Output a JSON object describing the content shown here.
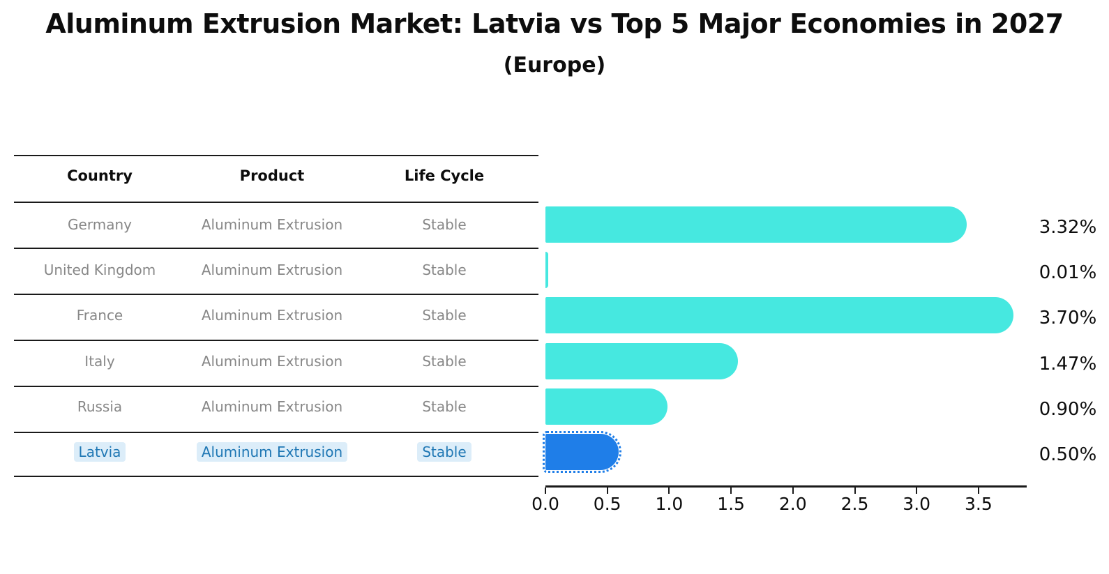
{
  "title": "Aluminum Extrusion Market: Latvia vs Top 5 Major Economies in 2027",
  "subtitle": "(Europe)",
  "table": {
    "headers": [
      "Country",
      "Product",
      "Life Cycle"
    ],
    "rows": [
      {
        "country": "Germany",
        "product": "Aluminum Extrusion",
        "life_cycle": "Stable"
      },
      {
        "country": "United Kingdom",
        "product": "Aluminum Extrusion",
        "life_cycle": "Stable"
      },
      {
        "country": "France",
        "product": "Aluminum Extrusion",
        "life_cycle": "Stable"
      },
      {
        "country": "Italy",
        "product": "Aluminum Extrusion",
        "life_cycle": "Stable"
      },
      {
        "country": "Russia",
        "product": "Aluminum Extrusion",
        "life_cycle": "Stable"
      },
      {
        "country": "Latvia",
        "product": "Aluminum Extrusion",
        "life_cycle": "Stable"
      }
    ],
    "highlighted_row": "Latvia"
  },
  "chart_data": {
    "type": "bar",
    "orientation": "horizontal",
    "title": "Aluminum Extrusion Market: Latvia vs Top 5 Major Economies in 2027 (Europe)",
    "categories": [
      "Germany",
      "United Kingdom",
      "France",
      "Italy",
      "Russia",
      "Latvia"
    ],
    "values": [
      3.32,
      0.01,
      3.7,
      1.47,
      0.9,
      0.5
    ],
    "value_labels": [
      "3.32%",
      "0.01%",
      "3.70%",
      "1.47%",
      "0.90%",
      "0.50%"
    ],
    "unit": "%",
    "x_ticks": [
      0.0,
      0.5,
      1.0,
      1.5,
      2.0,
      2.5,
      3.0,
      3.5
    ],
    "x_tick_labels": [
      "0.0",
      "0.5",
      "1.0",
      "1.5",
      "2.0",
      "2.5",
      "3.0",
      "3.5"
    ],
    "xlim": [
      0,
      3.885
    ],
    "grid": false,
    "legend": "none",
    "highlight_index": 5,
    "bar_color": "#46E8E0",
    "highlight_bar_color": "#1F7EE8"
  },
  "colors": {
    "title_text": "#0d0d0d",
    "table_header_text": "#0d0d0d",
    "table_body_text": "#878787",
    "highlight_text": "#1f77b4",
    "highlight_text_bg": "#dcedf9",
    "axis_line": "#1a1a1a",
    "background": "#ffffff"
  }
}
